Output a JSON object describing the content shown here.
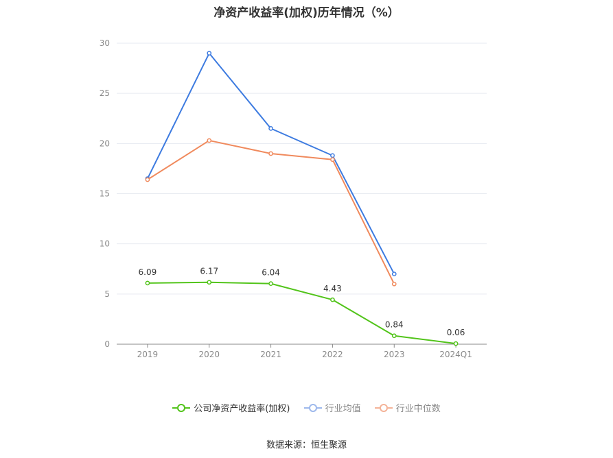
{
  "chart_data": {
    "type": "line",
    "title": "净资产收益率(加权)历年情况（%）",
    "categories": [
      "2019",
      "2020",
      "2021",
      "2022",
      "2023",
      "2024Q1"
    ],
    "ylim": [
      0,
      30
    ],
    "yticks": [
      0,
      5,
      10,
      15,
      20,
      25,
      30
    ],
    "grid": true,
    "legend_position": "bottom",
    "series": [
      {
        "name": "公司净资产收益率(加权)",
        "color": "#52c41a",
        "values": [
          6.09,
          6.17,
          6.04,
          4.43,
          0.84,
          0.06
        ],
        "labels": [
          "6.09",
          "6.17",
          "6.04",
          "4.43",
          "0.84",
          "0.06"
        ]
      },
      {
        "name": "行业均值",
        "color": "#3d7be0",
        "values": [
          16.5,
          29.0,
          21.5,
          18.8,
          7.0,
          null
        ]
      },
      {
        "name": "行业中位数",
        "color": "#f08a5d",
        "values": [
          16.4,
          20.3,
          19.0,
          18.4,
          6.0,
          null
        ]
      }
    ]
  },
  "source": "数据来源：恒生聚源"
}
